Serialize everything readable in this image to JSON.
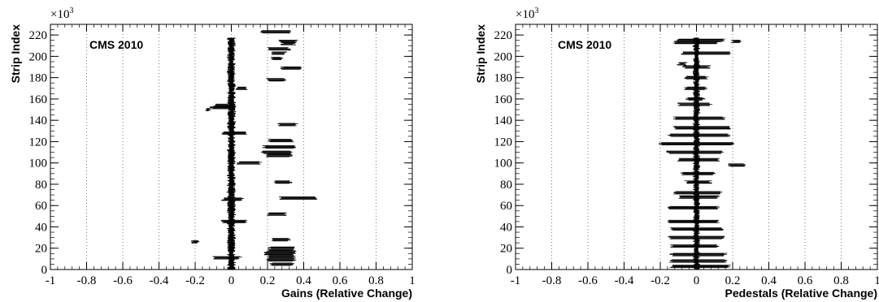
{
  "chart_data": [
    {
      "type": "scatter",
      "panel": "gains",
      "xlabel": "Gains (Relative Change)",
      "ylabel": "Strip Index",
      "annotation": "CMS 2010",
      "y_multiplier": {
        "base": "×10",
        "exp": "3"
      },
      "xlim": [
        -1,
        1
      ],
      "ylim": [
        0,
        230
      ],
      "x_ticks": [
        -1,
        -0.8,
        -0.6,
        -0.4,
        -0.2,
        0,
        0.2,
        0.4,
        0.6,
        0.8,
        1
      ],
      "x_tick_labels": [
        "-1",
        "-0.8",
        "-0.6",
        "-0.4",
        "-0.2",
        "0",
        "0.2",
        "0.4",
        "0.6",
        "0.8",
        "1"
      ],
      "y_ticks": [
        0,
        20,
        40,
        60,
        80,
        100,
        120,
        140,
        160,
        180,
        200,
        220
      ],
      "y_tick_labels": [
        "0",
        "20",
        "40",
        "60",
        "80",
        "100",
        "120",
        "140",
        "160",
        "180",
        "200",
        "220"
      ],
      "grid": "vertical-dotted",
      "main_band": {
        "center": 0.0,
        "half_width": 0.015,
        "y_range": [
          0,
          217
        ]
      },
      "segments": [
        {
          "x": [
            0.17,
            0.33
          ],
          "y": 223
        },
        {
          "x": [
            0.27,
            0.36
          ],
          "y": 214
        },
        {
          "x": [
            0.28,
            0.35
          ],
          "y": 212
        },
        {
          "x": [
            0.2,
            0.32
          ],
          "y": 207
        },
        {
          "x": [
            0.22,
            0.3
          ],
          "y": 203
        },
        {
          "x": [
            0.22,
            0.28
          ],
          "y": 198
        },
        {
          "x": [
            0.28,
            0.38
          ],
          "y": 189
        },
        {
          "x": [
            0.2,
            0.3
          ],
          "y": 178
        },
        {
          "x": [
            0.03,
            0.08
          ],
          "y": 170
        },
        {
          "x": [
            -0.09,
            -0.01
          ],
          "y": 154
        },
        {
          "x": [
            -0.11,
            0.02
          ],
          "y": 152
        },
        {
          "x": [
            -0.14,
            -0.12
          ],
          "y": 150
        },
        {
          "x": [
            0.26,
            0.36
          ],
          "y": 136
        },
        {
          "x": [
            -0.05,
            0.08
          ],
          "y": 128
        },
        {
          "x": [
            0.21,
            0.34
          ],
          "y": 121
        },
        {
          "x": [
            0.18,
            0.35
          ],
          "y": 115
        },
        {
          "x": [
            0.17,
            0.33
          ],
          "y": 110
        },
        {
          "x": [
            0.2,
            0.33
          ],
          "y": 107
        },
        {
          "x": [
            0.04,
            0.16
          ],
          "y": 100
        },
        {
          "x": [
            0.24,
            0.33
          ],
          "y": 82
        },
        {
          "x": [
            -0.05,
            0.06
          ],
          "y": 66
        },
        {
          "x": [
            0.27,
            0.47
          ],
          "y": 67
        },
        {
          "x": [
            0.2,
            0.3
          ],
          "y": 52
        },
        {
          "x": [
            -0.22,
            -0.18
          ],
          "y": 26
        },
        {
          "x": [
            -0.05,
            0.08
          ],
          "y": 45
        },
        {
          "x": [
            0.22,
            0.32
          ],
          "y": 28
        },
        {
          "x": [
            0.21,
            0.35
          ],
          "y": 20
        },
        {
          "x": [
            0.2,
            0.35
          ],
          "y": 17
        },
        {
          "x": [
            0.19,
            0.35
          ],
          "y": 15
        },
        {
          "x": [
            0.2,
            0.35
          ],
          "y": 12
        },
        {
          "x": [
            0.2,
            0.35
          ],
          "y": 9
        },
        {
          "x": [
            0.22,
            0.34
          ],
          "y": 5
        },
        {
          "x": [
            -0.1,
            0.05
          ],
          "y": 11
        }
      ]
    },
    {
      "type": "scatter",
      "panel": "pedestals",
      "xlabel": "Pedestals (Relative Change)",
      "ylabel": "Strip Index",
      "annotation": "CMS 2010",
      "y_multiplier": {
        "base": "×10",
        "exp": "3"
      },
      "xlim": [
        -1,
        1
      ],
      "ylim": [
        0,
        230
      ],
      "x_ticks": [
        -1,
        -0.8,
        -0.6,
        -0.4,
        -0.2,
        0,
        0.2,
        0.4,
        0.6,
        0.8,
        1
      ],
      "x_tick_labels": [
        "-1",
        "-0.8",
        "-0.6",
        "-0.4",
        "-0.2",
        "0",
        "0.2",
        "0.4",
        "0.6",
        "0.8",
        "1"
      ],
      "y_ticks": [
        0,
        20,
        40,
        60,
        80,
        100,
        120,
        140,
        160,
        180,
        200,
        220
      ],
      "y_tick_labels": [
        "0",
        "20",
        "40",
        "60",
        "80",
        "100",
        "120",
        "140",
        "160",
        "180",
        "200",
        "220"
      ],
      "grid": "vertical-dotted",
      "main_band": {
        "center": 0.0,
        "half_width": 0.012,
        "y_range": [
          0,
          217
        ]
      },
      "segments": [
        {
          "x": [
            -0.1,
            0.15
          ],
          "y": 215
        },
        {
          "x": [
            -0.12,
            0.12
          ],
          "y": 213
        },
        {
          "x": [
            0.2,
            0.24
          ],
          "y": 214
        },
        {
          "x": [
            -0.08,
            0.18
          ],
          "y": 203
        },
        {
          "x": [
            -0.1,
            -0.06
          ],
          "y": 193
        },
        {
          "x": [
            -0.07,
            0.07
          ],
          "y": 190
        },
        {
          "x": [
            -0.06,
            0.06
          ],
          "y": 180
        },
        {
          "x": [
            -0.06,
            0.05
          ],
          "y": 170
        },
        {
          "x": [
            -0.05,
            0.04
          ],
          "y": 160
        },
        {
          "x": [
            -0.1,
            0.08
          ],
          "y": 155
        },
        {
          "x": [
            -0.12,
            0.15
          ],
          "y": 142
        },
        {
          "x": [
            -0.12,
            0.18
          ],
          "y": 133
        },
        {
          "x": [
            -0.15,
            0.18
          ],
          "y": 126
        },
        {
          "x": [
            -0.2,
            0.2
          ],
          "y": 118
        },
        {
          "x": [
            -0.16,
            0.14
          ],
          "y": 110
        },
        {
          "x": [
            -0.1,
            0.12
          ],
          "y": 103
        },
        {
          "x": [
            0.18,
            0.27
          ],
          "y": 98
        },
        {
          "x": [
            -0.08,
            0.1
          ],
          "y": 90
        },
        {
          "x": [
            -0.06,
            0.08
          ],
          "y": 82
        },
        {
          "x": [
            -0.12,
            0.14
          ],
          "y": 72
        },
        {
          "x": [
            -0.1,
            0.12
          ],
          "y": 68
        },
        {
          "x": [
            -0.15,
            0.12
          ],
          "y": 58
        },
        {
          "x": [
            -0.16,
            0.12
          ],
          "y": 45
        },
        {
          "x": [
            -0.14,
            0.14
          ],
          "y": 38
        },
        {
          "x": [
            -0.15,
            0.15
          ],
          "y": 30
        },
        {
          "x": [
            -0.14,
            0.12
          ],
          "y": 22
        },
        {
          "x": [
            -0.14,
            0.16
          ],
          "y": 14
        },
        {
          "x": [
            -0.14,
            0.16
          ],
          "y": 8
        },
        {
          "x": [
            -0.14,
            0.18
          ],
          "y": 3
        }
      ]
    }
  ]
}
